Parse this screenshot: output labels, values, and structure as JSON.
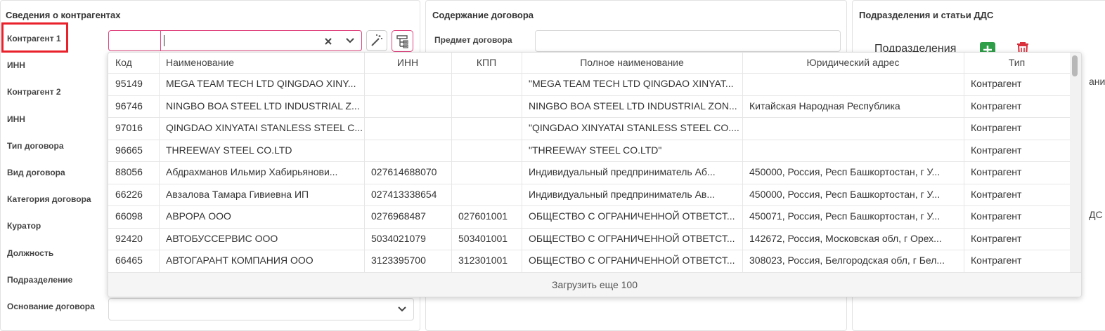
{
  "counterparties": {
    "title": "Сведения о контрагентах",
    "labels": [
      "Контрагент 1",
      "ИНН",
      "Контрагент 2",
      "ИНН",
      "Тип договора",
      "Вид договора",
      "Категория договора",
      "Куратор",
      "Должность",
      "Подразделение",
      "Основание договора"
    ]
  },
  "contract": {
    "title": "Содержание договора",
    "subject_label": "Предмет договора"
  },
  "departments": {
    "title": "Подразделения и статьи ДДС",
    "subdivisions_label": "Подразделения",
    "partial_texts": [
      "ание",
      "ДС"
    ]
  },
  "dropdown": {
    "columns": [
      "Код",
      "Наименование",
      "ИНН",
      "КПП",
      "Полное наименование",
      "Юридический адрес",
      "Тип"
    ],
    "rows": [
      [
        "95149",
        "MEGA TEAM TECH LTD QINGDAO XINY...",
        null,
        null,
        "\"MEGA TEAM TECH LTD QINGDAO XINYAT...",
        null,
        "Контрагент"
      ],
      [
        "96746",
        "NINGBO BOA STEEL LTD INDUSTRIAL Z...",
        null,
        null,
        "NINGBO BOA STEEL LTD INDUSTRIAL ZON...",
        "Китайская Народная Республика",
        "Контрагент"
      ],
      [
        "97016",
        "QINGDAO XINYATAI STANLESS STEEL C...",
        null,
        null,
        "\"QINGDAO XINYATAI STANLESS STEEL CO....",
        null,
        "Контрагент"
      ],
      [
        "96665",
        "THREEWAY STEEL CO.LTD",
        null,
        null,
        "\"THREEWAY STEEL CO.LTD\"",
        null,
        "Контрагент"
      ],
      [
        "88056",
        "Абдрахманов Ильмир Хабирьянови...",
        "027614688070",
        null,
        "Индивидуальный предприниматель Аб...",
        "450000, Россия, Респ Башкортостан, г У...",
        "Контрагент"
      ],
      [
        "66226",
        "Авзалова Тамара Гивиевна ИП",
        "027413338654",
        null,
        "Индивидуальный предприниматель Ав...",
        "450000, Россия, Респ Башкортостан, г У...",
        "Контрагент"
      ],
      [
        "66098",
        "АВРОРА ООО",
        "0276968487",
        "027601001",
        "ОБЩЕСТВО С ОГРАНИЧЕННОЙ ОТВЕТСТ...",
        "450071, Россия, Респ Башкортостан, г У...",
        "Контрагент"
      ],
      [
        "92420",
        "АВТОБУССЕРВИС ООО",
        "5034021079",
        "503401001",
        "ОБЩЕСТВО С ОГРАНИЧЕННОЙ ОТВЕТСТ...",
        "142672, Россия, Московская обл, г Орех...",
        "Контрагент"
      ],
      [
        "66465",
        "АВТОГАРАНТ КОМПАНИЯ ООО",
        "3123395700",
        "312301001",
        "ОБЩЕСТВО С ОГРАНИЧЕННОЙ ОТВЕТСТ...",
        "308023, Россия, Белгородская обл, г Бел...",
        "Контрагент"
      ]
    ],
    "load_more": "Загрузить еще 100"
  }
}
